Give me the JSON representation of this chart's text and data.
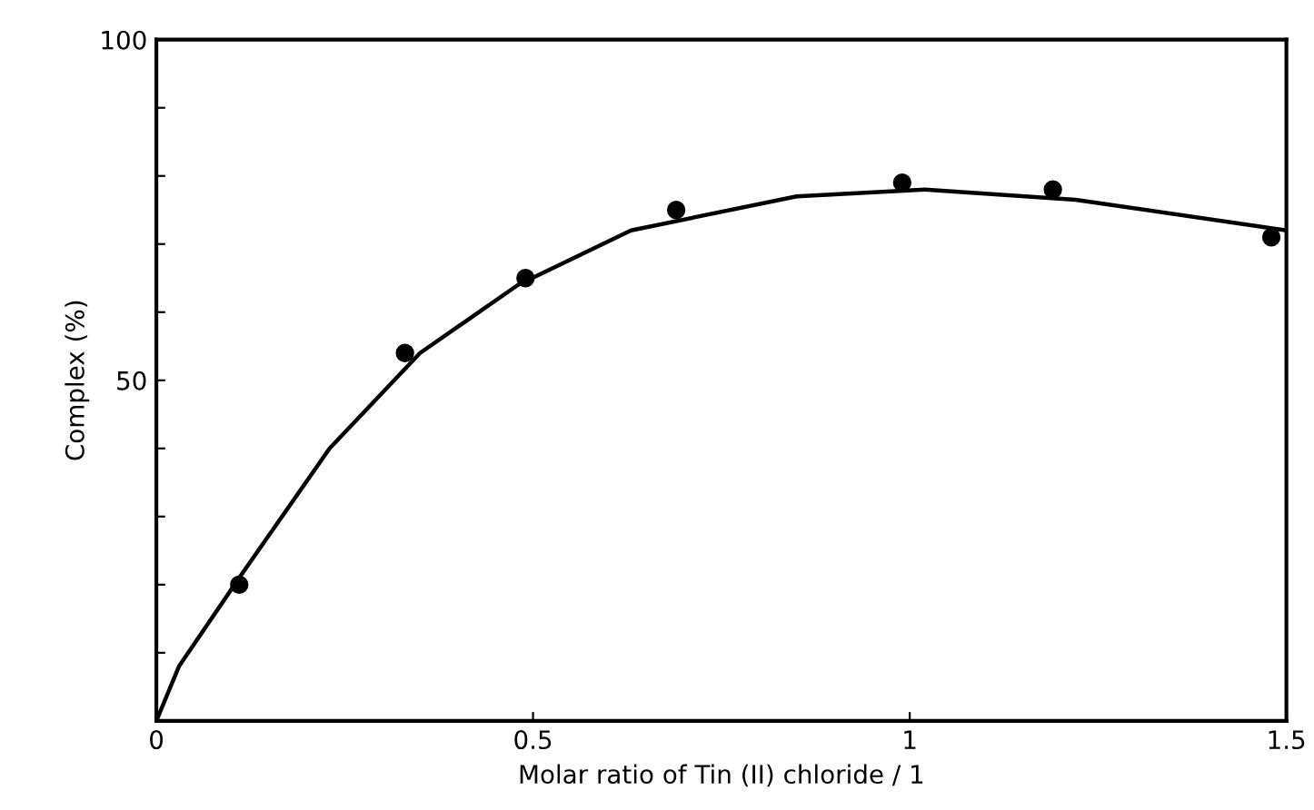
{
  "chart_data": {
    "type": "scatter",
    "xlabel": "Molar ratio of Tin (II) chloride / 1",
    "ylabel": "Complex (%)",
    "series": [
      {
        "color": "#000000",
        "marker": "circle",
        "x": [
          0.11,
          0.33,
          0.49,
          0.69,
          0.99,
          1.19,
          1.48
        ],
        "values": [
          20,
          54,
          65,
          75,
          79,
          78,
          71
        ]
      },
      {
        "type": "line",
        "color": "#000000",
        "marker": "none",
        "line_style": "solid",
        "x": [
          0,
          0.03,
          0.11,
          0.23,
          0.35,
          0.48,
          0.63,
          0.85,
          1.02,
          1.22,
          1.5
        ],
        "values": [
          0,
          8,
          21,
          40,
          54,
          64,
          72,
          77,
          78,
          76.5,
          72
        ]
      }
    ],
    "xlim": [
      0,
      1.5
    ],
    "ylim": [
      0,
      100
    ],
    "xticks": [
      0,
      0.5,
      1,
      1.5
    ],
    "yticks": [
      {
        "value": 10,
        "label": null
      },
      {
        "value": 20,
        "label": null
      },
      {
        "value": 30,
        "label": null
      },
      {
        "value": 40,
        "label": null
      },
      50,
      {
        "value": 60,
        "label": null
      },
      {
        "value": 70,
        "label": null
      },
      {
        "value": 80,
        "label": null
      },
      {
        "value": 90,
        "label": null
      },
      100
    ],
    "grid": false,
    "legend": false
  }
}
